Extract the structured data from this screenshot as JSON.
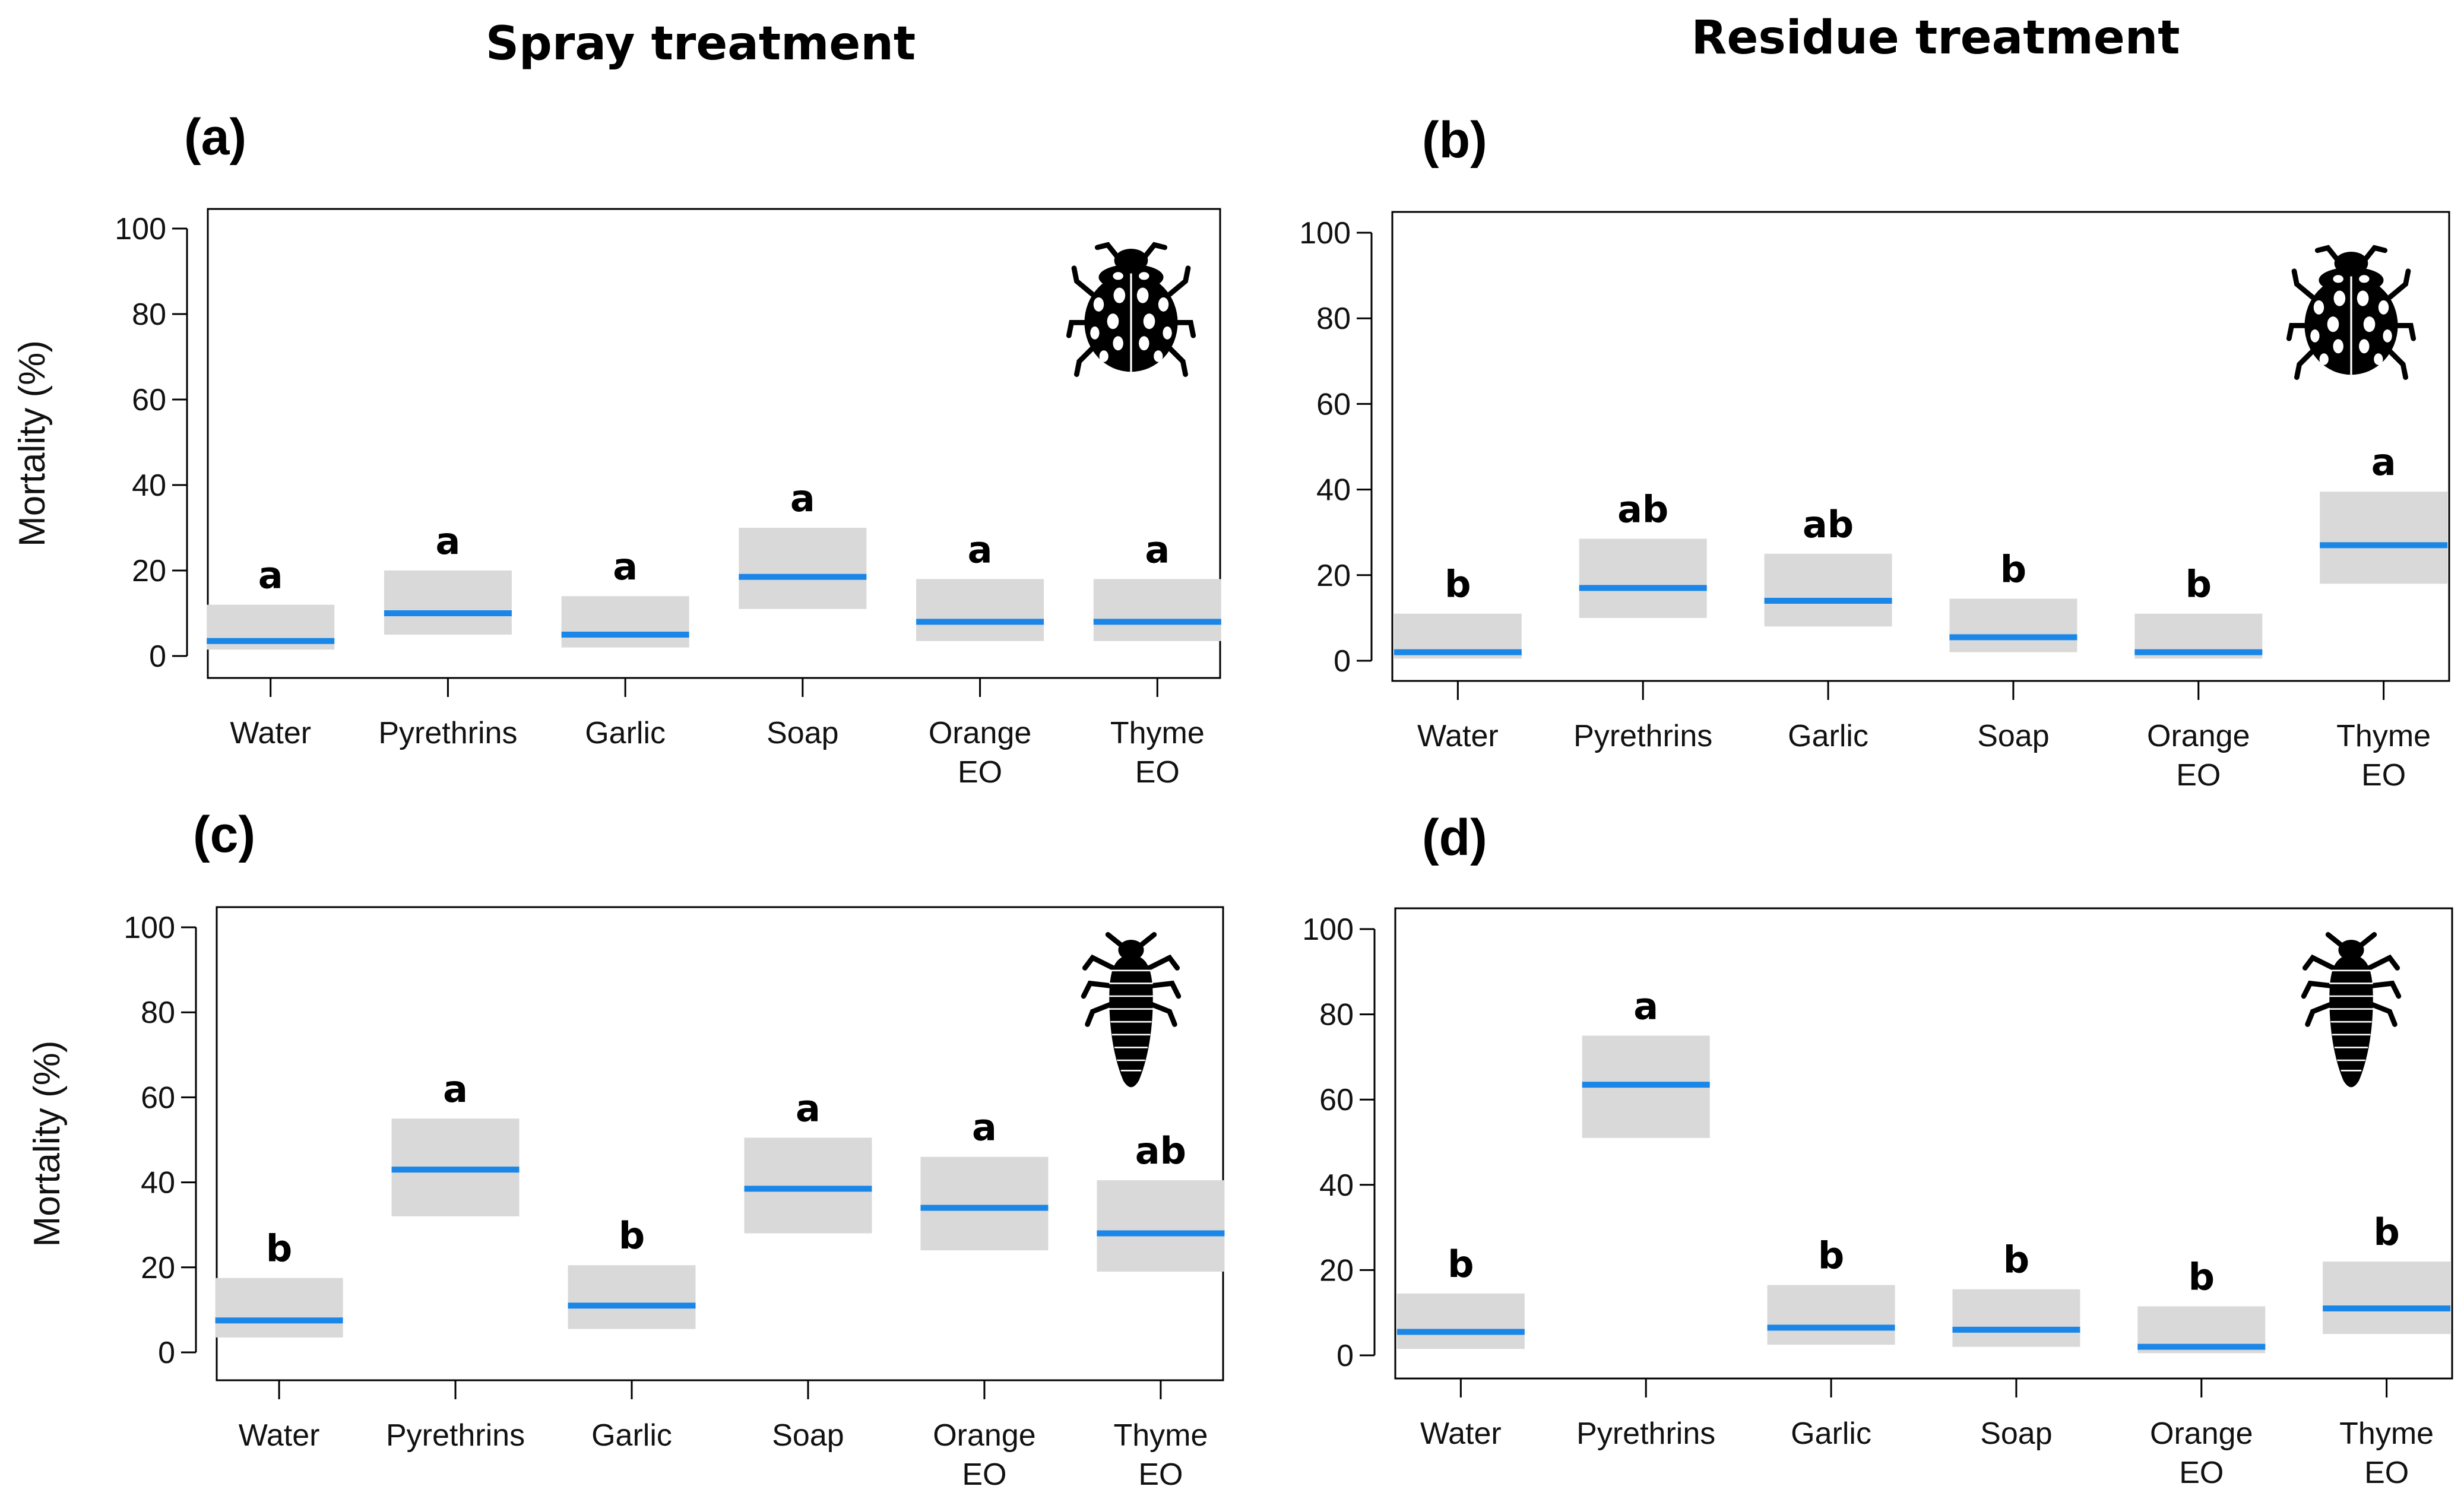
{
  "figure": {
    "column_titles": [
      "Spray treatment",
      "Residue treatment"
    ],
    "ylabel": "Mortality (%)",
    "colors": {
      "box": "#d9d9d9",
      "mean": "#1a86e8",
      "axis": "#000000"
    },
    "icons": {
      "adult": "ladybird-adult-icon",
      "larva": "ladybird-larva-icon"
    }
  },
  "chart_data": [
    {
      "type": "box",
      "panel": "(a)",
      "column": "Spray treatment",
      "icon": "adult",
      "ylabel": "Mortality (%)",
      "ylim": [
        0,
        100
      ],
      "yticks": [
        "0",
        "20",
        "40",
        "60",
        "80",
        "100"
      ],
      "categories": [
        [
          "Water"
        ],
        [
          "Pyrethrins"
        ],
        [
          "Garlic"
        ],
        [
          "Soap"
        ],
        [
          "Orange",
          "EO"
        ],
        [
          "Thyme",
          "EO"
        ]
      ],
      "mean": [
        3.5,
        10,
        5,
        18.5,
        8,
        8
      ],
      "lower": [
        1.5,
        5,
        2,
        11,
        3.5,
        3.5
      ],
      "upper": [
        12,
        20,
        14,
        30,
        18,
        18
      ],
      "letters": [
        "a",
        "a",
        "a",
        "a",
        "a",
        "a"
      ]
    },
    {
      "type": "box",
      "panel": "(b)",
      "column": "Residue treatment",
      "icon": "adult",
      "ylabel": "",
      "ylim": [
        0,
        100
      ],
      "yticks": [
        "0",
        "20",
        "40",
        "60",
        "80",
        "100"
      ],
      "categories": [
        [
          "Water"
        ],
        [
          "Pyrethrins"
        ],
        [
          "Garlic"
        ],
        [
          "Soap"
        ],
        [
          "Orange",
          "EO"
        ],
        [
          "Thyme",
          "EO"
        ]
      ],
      "mean": [
        2,
        17,
        14,
        5.5,
        2,
        27
      ],
      "lower": [
        0.5,
        10,
        8,
        2,
        0.5,
        18
      ],
      "upper": [
        11,
        28.5,
        25,
        14.5,
        11,
        39.5
      ],
      "letters": [
        "b",
        "ab",
        "ab",
        "b",
        "b",
        "a"
      ]
    },
    {
      "type": "box",
      "panel": "(c)",
      "column": "Spray treatment",
      "icon": "larva",
      "ylabel": "Mortality (%)",
      "ylim": [
        0,
        100
      ],
      "yticks": [
        "0",
        "20",
        "40",
        "60",
        "80",
        "100"
      ],
      "categories": [
        [
          "Water"
        ],
        [
          "Pyrethrins"
        ],
        [
          "Garlic"
        ],
        [
          "Soap"
        ],
        [
          "Orange",
          "EO"
        ],
        [
          "Thyme",
          "EO"
        ]
      ],
      "mean": [
        7.5,
        43,
        11,
        38.5,
        34,
        28
      ],
      "lower": [
        3.5,
        32,
        5.5,
        28,
        24,
        19
      ],
      "upper": [
        17.5,
        55,
        20.5,
        50.5,
        46,
        40.5
      ],
      "letters": [
        "b",
        "a",
        "b",
        "a",
        "a",
        "ab"
      ]
    },
    {
      "type": "box",
      "panel": "(d)",
      "column": "Residue treatment",
      "icon": "larva",
      "ylabel": "",
      "ylim": [
        0,
        100
      ],
      "yticks": [
        "0",
        "20",
        "40",
        "60",
        "80",
        "100"
      ],
      "categories": [
        [
          "Water"
        ],
        [
          "Pyrethrins"
        ],
        [
          "Garlic"
        ],
        [
          "Soap"
        ],
        [
          "Orange",
          "EO"
        ],
        [
          "Thyme",
          "EO"
        ]
      ],
      "mean": [
        5.5,
        63.5,
        6.5,
        6,
        2,
        11
      ],
      "lower": [
        1.5,
        51,
        2.5,
        2,
        0.5,
        5
      ],
      "upper": [
        14.5,
        75,
        16.5,
        15.5,
        11.5,
        22
      ],
      "letters": [
        "b",
        "a",
        "b",
        "b",
        "b",
        "b"
      ]
    }
  ]
}
